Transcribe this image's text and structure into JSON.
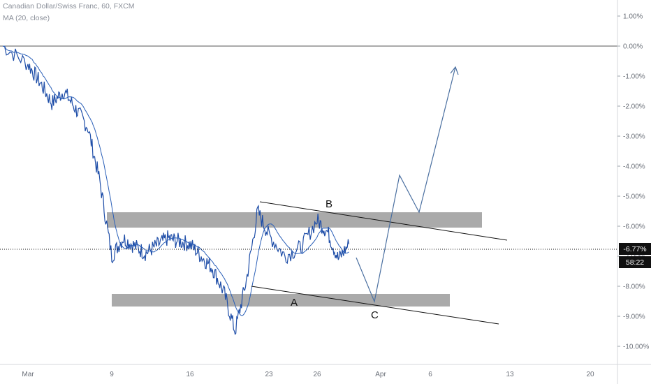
{
  "chart_header": {
    "symbol_line": "Canadian Dollar/Swiss Franc, 60, FXCM",
    "indicator_line": "MA (20, close)"
  },
  "price_badge": {
    "value": "-6.77%",
    "countdown": "58:22"
  },
  "colors": {
    "price": "#1f4ea8",
    "ma": "#2a5fb8",
    "zone": "#aaaaaa",
    "trendline": "#111111",
    "projection": "#4a6fa0",
    "badge_bg": "#111111",
    "badge_text": "#ffffff",
    "axis_text": "#6a6f78"
  },
  "chart_data": {
    "type": "line",
    "title": "Canadian Dollar/Swiss Franc, 60, FXCM",
    "indicator": "MA (20, close)",
    "scale": "percent",
    "x_ticks": [
      "Mar",
      "9",
      "16",
      "23",
      "26",
      "Apr",
      "6",
      "13",
      "20"
    ],
    "y_ticks": [
      "1.00%",
      "0.00%",
      "-1.00%",
      "-2.00%",
      "-3.00%",
      "-4.00%",
      "-5.00%",
      "-6.00%",
      "-7.00%",
      "-8.00%",
      "-9.00%",
      "-10.00%"
    ],
    "ylim": [
      -10.5,
      1.5
    ],
    "baseline": 0,
    "current_value": -6.77,
    "price_path": [
      {
        "x": "Mar 1",
        "y": 0.0
      },
      {
        "x": "Mar 3",
        "y": -1.2
      },
      {
        "x": "Mar 4",
        "y": -1.9
      },
      {
        "x": "Mar 5",
        "y": -1.5
      },
      {
        "x": "Mar 6",
        "y": -2.1
      },
      {
        "x": "Mar 7",
        "y": -2.7
      },
      {
        "x": "Mar 8",
        "y": -4.5
      },
      {
        "x": "Mar 9",
        "y": -7.0
      },
      {
        "x": "Mar 10",
        "y": -6.4
      },
      {
        "x": "Mar 12",
        "y": -6.9
      },
      {
        "x": "Mar 14",
        "y": -6.4
      },
      {
        "x": "Mar 16",
        "y": -6.6
      },
      {
        "x": "Mar 18",
        "y": -7.4
      },
      {
        "x": "Mar 19",
        "y": -8.2
      },
      {
        "x": "Mar 20",
        "y": -9.5
      },
      {
        "x": "Mar 21",
        "y": -7.8
      },
      {
        "x": "Mar 22",
        "y": -5.5
      },
      {
        "x": "Mar 23",
        "y": -6.3
      },
      {
        "x": "Mar 24",
        "y": -7.0
      },
      {
        "x": "Mar 25",
        "y": -6.7
      },
      {
        "x": "Mar 26",
        "y": -5.8
      },
      {
        "x": "Mar 27",
        "y": -6.2
      },
      {
        "x": "Mar 28",
        "y": -7.1
      },
      {
        "x": "Mar 29",
        "y": -6.6
      }
    ],
    "zones": [
      {
        "from": -5.5,
        "to": -6.0
      },
      {
        "from": -8.2,
        "to": -8.6
      }
    ],
    "wave_labels": [
      "B",
      "A",
      "C"
    ],
    "projection_path": [
      -6.8,
      -8.5,
      -4.3,
      -5.5,
      -0.7
    ]
  }
}
